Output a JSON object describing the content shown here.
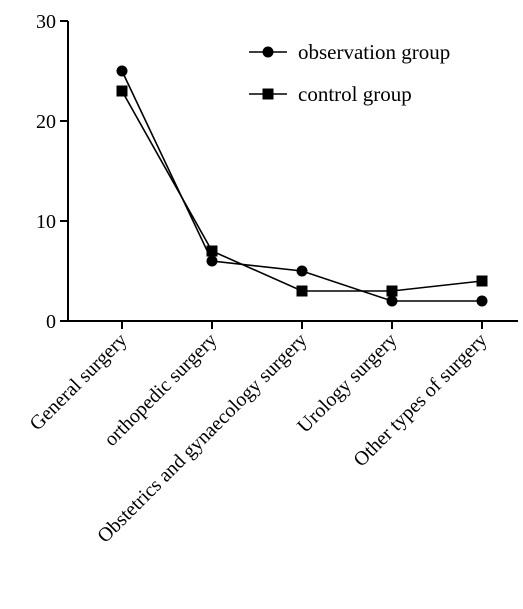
{
  "chart_data": {
    "type": "line",
    "categories": [
      "General surgery",
      "orthopedic surgery",
      "Obstetrics and gynaecology surgery",
      "Urology surgery",
      "Other types of surgery"
    ],
    "series": [
      {
        "name": "observation group",
        "marker": "circle",
        "values": [
          25,
          6,
          5,
          2,
          2
        ]
      },
      {
        "name": "control group",
        "marker": "square",
        "values": [
          23,
          7,
          3,
          3,
          4
        ]
      }
    ],
    "yticks": [
      0,
      10,
      20,
      30
    ],
    "ylim": [
      0,
      30
    ],
    "title": "",
    "xlabel": "",
    "ylabel": "",
    "grid": false,
    "legend_position": "top-right",
    "colors": {
      "line": "#000000",
      "marker": "#000000"
    }
  }
}
